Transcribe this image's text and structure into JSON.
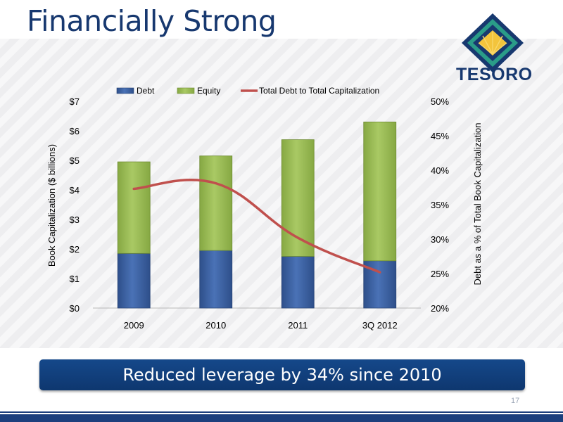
{
  "title": "Financially Strong",
  "logo": {
    "text": "TESORO"
  },
  "banner": {
    "text": "Reduced leverage by 34% since 2010"
  },
  "page_number": "17",
  "colors": {
    "title": "#17386f",
    "debt": "#3d63a4",
    "equity": "#9bbb59",
    "line": "#c0504d",
    "banner": "#12417e"
  },
  "chart_data": {
    "type": "bar",
    "stacked": true,
    "categories": [
      "2009",
      "2010",
      "2011",
      "3Q 2012"
    ],
    "series": [
      {
        "name": "Debt",
        "type": "bar",
        "axis": "left",
        "values": [
          1.85,
          1.95,
          1.75,
          1.6
        ]
      },
      {
        "name": "Equity",
        "type": "bar",
        "axis": "left",
        "values": [
          3.1,
          3.2,
          3.95,
          4.7
        ]
      },
      {
        "name": "Total Debt to Total Capitalization",
        "type": "line",
        "axis": "right",
        "values": [
          37.3,
          38.1,
          30.2,
          25.2
        ]
      }
    ],
    "ylabel": "Book Capitalization ($ billions)",
    "y2label": "Debt as a % of Total Book Capitalization",
    "ylim": [
      0,
      7
    ],
    "y2lim": [
      20,
      50
    ],
    "yticks": [
      "$0",
      "$1",
      "$2",
      "$3",
      "$4",
      "$5",
      "$6",
      "$7"
    ],
    "y2ticks": [
      "20%",
      "25%",
      "30%",
      "35%",
      "40%",
      "45%",
      "50%"
    ],
    "legend_position": "top"
  }
}
